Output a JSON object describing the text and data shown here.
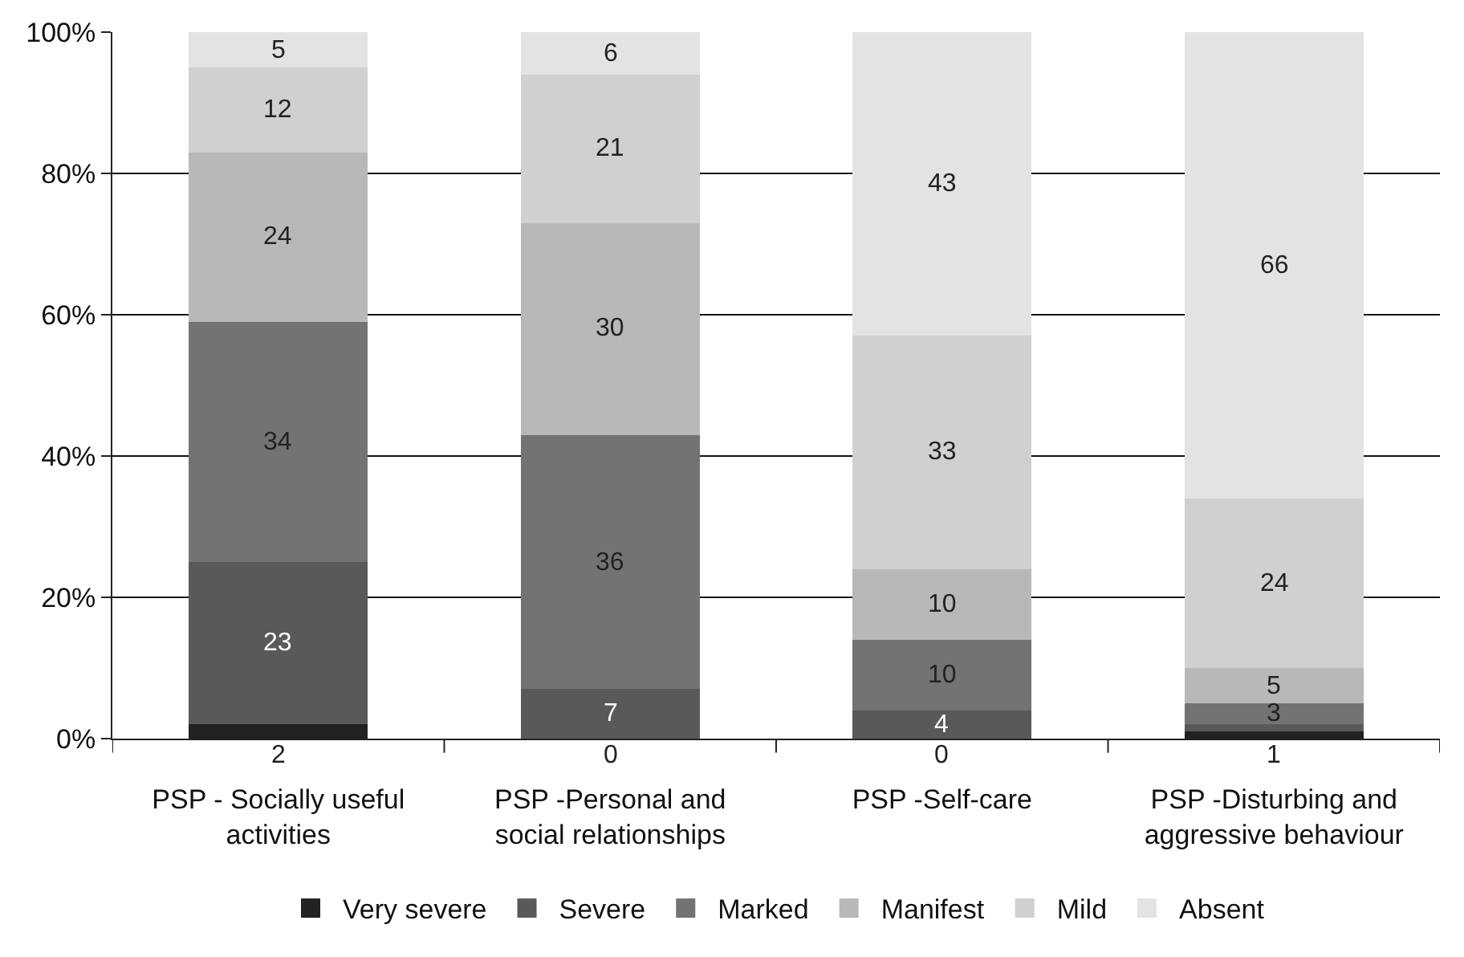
{
  "chart_data": {
    "type": "bar",
    "stacked": true,
    "grid": "y",
    "legend": "bottom",
    "categories": [
      "PSP - Socially useful activities",
      "PSP -Personal and social relationships",
      "PSP -Self-care",
      "PSP -Disturbing and aggressive behaviour"
    ],
    "ylim": [
      0,
      100
    ],
    "yticks": [
      {
        "value": 0,
        "label": "0%"
      },
      {
        "value": 20,
        "label": "20%"
      },
      {
        "value": 40,
        "label": "40%"
      },
      {
        "value": 60,
        "label": "60%"
      },
      {
        "value": 80,
        "label": "80%"
      },
      {
        "value": 100,
        "label": "100%"
      }
    ],
    "series": [
      {
        "name": "Very severe",
        "color": "#222222",
        "values": [
          2,
          0,
          0,
          1
        ],
        "value_labels": [
          "2",
          "0",
          "0",
          "1"
        ]
      },
      {
        "name": "Severe",
        "color": "#595959",
        "values": [
          23,
          7,
          4,
          1
        ],
        "value_labels": [
          "23",
          "7",
          "4",
          null
        ]
      },
      {
        "name": "Marked",
        "color": "#737373",
        "values": [
          34,
          36,
          10,
          3
        ],
        "value_labels": [
          "34",
          "36",
          "10",
          "3"
        ]
      },
      {
        "name": "Manifest",
        "color": "#b8b8b8",
        "values": [
          24,
          30,
          10,
          5
        ],
        "value_labels": [
          "24",
          "30",
          "10",
          "5"
        ]
      },
      {
        "name": "Mild",
        "color": "#cfd0cf",
        "values": [
          12,
          21,
          33,
          24
        ],
        "value_labels": [
          "12",
          "21",
          "33",
          "24"
        ]
      },
      {
        "name": "Absent",
        "color": "#e3e3e3",
        "values": [
          5,
          6,
          43,
          66
        ],
        "value_labels": [
          "5",
          "6",
          "43",
          "66"
        ]
      }
    ]
  }
}
